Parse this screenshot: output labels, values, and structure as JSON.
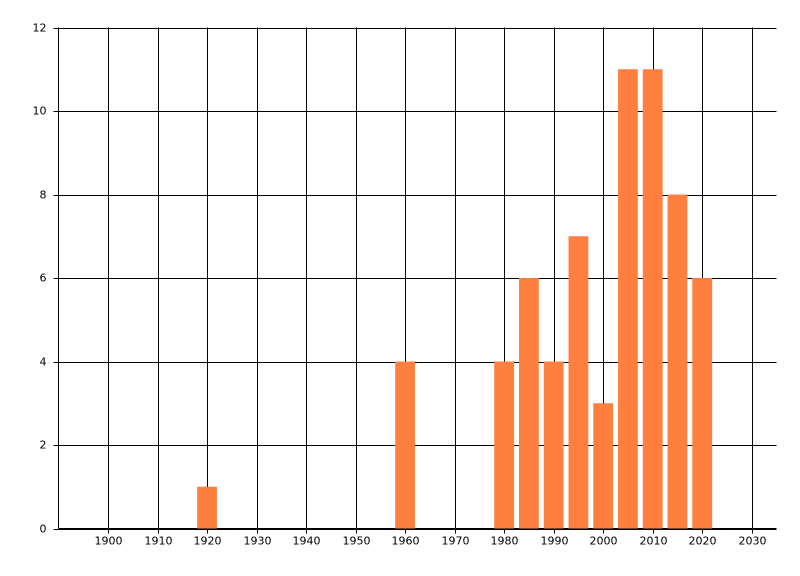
{
  "chart_data": {
    "type": "bar",
    "x": [
      1920,
      1960,
      1980,
      1985,
      1990,
      1995,
      2000,
      2005,
      2010,
      2015,
      2020
    ],
    "values": [
      1,
      4,
      4,
      6,
      4,
      7,
      3,
      11,
      11,
      8,
      6
    ],
    "color": "#ff7f3f",
    "xlim": [
      1890,
      2035
    ],
    "xticks": [
      1900,
      1910,
      1920,
      1930,
      1940,
      1950,
      1960,
      1970,
      1980,
      1990,
      2000,
      2010,
      2020,
      2030
    ],
    "ylim": [
      0,
      12
    ],
    "yticks": [
      0,
      2,
      4,
      6,
      8,
      10,
      12
    ],
    "grid": true
  }
}
